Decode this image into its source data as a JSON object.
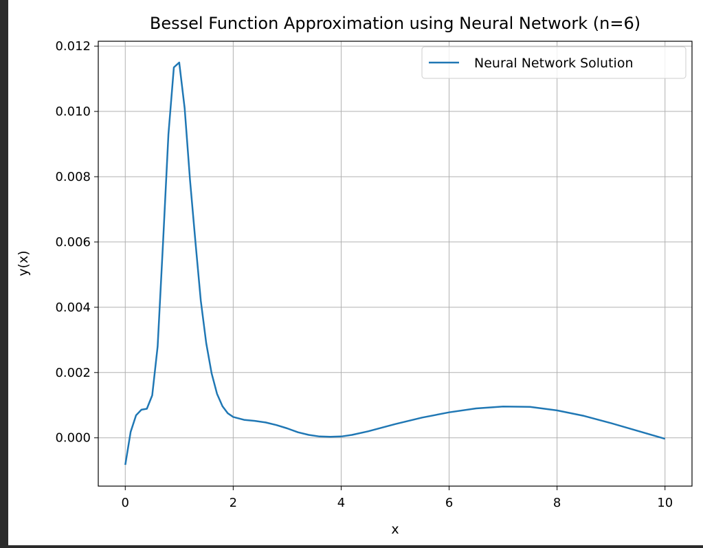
{
  "chart_data": {
    "type": "line",
    "title": "Bessel Function Approximation using Neural Network (n=6)",
    "xlabel": "x",
    "ylabel": "y(x)",
    "xlim": [
      -0.5,
      10.5
    ],
    "ylim": [
      -0.00148,
      0.01215
    ],
    "xticks": [
      0,
      2,
      4,
      6,
      8,
      10
    ],
    "xtick_labels": [
      "0",
      "2",
      "4",
      "6",
      "8",
      "10"
    ],
    "yticks": [
      0.0,
      0.002,
      0.004,
      0.006,
      0.008,
      0.01,
      0.012
    ],
    "ytick_labels": [
      "0.000",
      "0.002",
      "0.004",
      "0.006",
      "0.008",
      "0.010",
      "0.012"
    ],
    "grid": true,
    "legend_position": "top-right",
    "color": "#1f77b4",
    "series": [
      {
        "name": "Neural Network Solution",
        "x": [
          0,
          0.1,
          0.2,
          0.3,
          0.4,
          0.5,
          0.6,
          0.7,
          0.8,
          0.9,
          1.0,
          1.1,
          1.2,
          1.3,
          1.4,
          1.5,
          1.6,
          1.7,
          1.8,
          1.9,
          2.0,
          2.2,
          2.4,
          2.6,
          2.8,
          3.0,
          3.2,
          3.4,
          3.6,
          3.8,
          4.0,
          4.2,
          4.5,
          5.0,
          5.5,
          6.0,
          6.5,
          7.0,
          7.5,
          8.0,
          8.5,
          9.0,
          9.5,
          10.0
        ],
        "y": [
          -0.00083,
          0.00018,
          0.00069,
          0.00086,
          0.00089,
          0.0013,
          0.0028,
          0.006,
          0.0093,
          0.01135,
          0.0115,
          0.0101,
          0.0079,
          0.006,
          0.0042,
          0.0029,
          0.00198,
          0.00135,
          0.00097,
          0.00075,
          0.00064,
          0.00055,
          0.00052,
          0.00047,
          0.00039,
          0.00029,
          0.00017,
          9e-05,
          4e-05,
          3e-05,
          4e-05,
          9e-05,
          0.0002,
          0.00042,
          0.00062,
          0.00078,
          0.0009,
          0.00096,
          0.00095,
          0.00084,
          0.00067,
          0.00045,
          0.00021,
          -3e-05
        ]
      }
    ]
  }
}
